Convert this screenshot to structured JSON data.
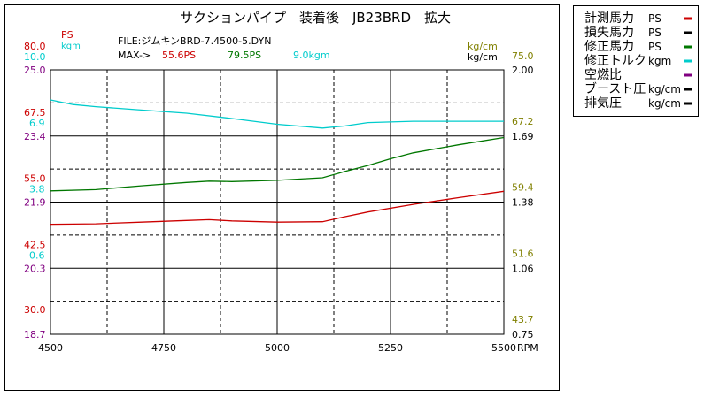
{
  "chart_data": {
    "type": "line",
    "title": "サクションパイプ　装着後　JB23BRD　拡大",
    "file_line": "FILE:ジムキンBRD-7.4500-5.DYN",
    "max_line": {
      "label": "MAX->",
      "values": [
        {
          "text": "55.6PS",
          "color": "#cc0000"
        },
        {
          "text": "79.5PS",
          "color": "#007700"
        },
        {
          "text": "9.0kgm",
          "color": "#00cccc"
        }
      ]
    },
    "xlabel": "RPM",
    "xlim": [
      4500,
      5500
    ],
    "x_ticks": [
      "4500",
      "4750",
      "5000",
      "5250",
      "5500"
    ],
    "grid": true,
    "legend_position": "right",
    "left_axes": [
      {
        "unit": "PS",
        "color": "#cc0000",
        "ticks": [
          "80.0",
          "67.5",
          "55.0",
          "42.5",
          "30.0"
        ]
      },
      {
        "unit": "kgm",
        "color": "#00cccc",
        "ticks": [
          "10.0",
          "6.9",
          "3.8",
          "0.6"
        ]
      },
      {
        "unit": "",
        "color": "#800080",
        "ticks": [
          "25.0",
          "23.4",
          "21.9",
          "20.3",
          "18.7"
        ]
      }
    ],
    "right_axes": [
      {
        "unit": "kg/cm",
        "color": "#808000",
        "ticks": [
          "75.0",
          "67.2",
          "59.4",
          "51.6",
          "43.7"
        ]
      },
      {
        "unit": "kg/cm",
        "color": "#000000",
        "ticks": [
          "2.00",
          "1.69",
          "1.38",
          "1.06",
          "0.75"
        ]
      }
    ],
    "ps_range": [
      17.5,
      80.0
    ],
    "kgm_range": [
      -2.5,
      10.0
    ],
    "series": [
      {
        "name": "計測馬力",
        "unit": "PS",
        "color": "#cc0000",
        "axis": "ps",
        "x": [
          4500,
          4600,
          4700,
          4800,
          4850,
          4900,
          5000,
          5100,
          5150,
          5200,
          5300,
          5400,
          5500
        ],
        "y": [
          43.5,
          43.6,
          44.0,
          44.4,
          44.6,
          44.3,
          44.0,
          44.1,
          45.3,
          46.4,
          48.2,
          49.8,
          51.3
        ]
      },
      {
        "name": "損失馬力",
        "unit": "PS",
        "color": "#000000",
        "axis": "ps",
        "x": [],
        "y": []
      },
      {
        "name": "修正馬力",
        "unit": "PS",
        "color": "#007700",
        "axis": "ps",
        "x": [
          4500,
          4600,
          4700,
          4800,
          4850,
          4900,
          5000,
          5100,
          5150,
          5200,
          5250,
          5300,
          5400,
          5500
        ],
        "y": [
          51.4,
          51.7,
          52.6,
          53.4,
          53.7,
          53.6,
          53.9,
          54.5,
          56.0,
          57.4,
          59.0,
          60.4,
          62.3,
          64.0
        ]
      },
      {
        "name": "修正トルク",
        "unit": "kgm",
        "color": "#00cccc",
        "axis": "kgm",
        "x": [
          4500,
          4550,
          4600,
          4700,
          4800,
          4900,
          5000,
          5100,
          5150,
          5200,
          5300,
          5400,
          5500
        ],
        "y": [
          8.58,
          8.36,
          8.26,
          8.1,
          7.95,
          7.7,
          7.43,
          7.25,
          7.35,
          7.51,
          7.57,
          7.57,
          7.57
        ]
      },
      {
        "name": "空燃比",
        "unit": "",
        "color": "#800080",
        "axis": "afr",
        "x": [],
        "y": []
      },
      {
        "name": "ブースト圧",
        "unit": "kg/cm",
        "color": "#000000",
        "axis": "boost",
        "x": [],
        "y": []
      },
      {
        "name": "排気圧",
        "unit": "kg/cm",
        "color": "#000000",
        "axis": "exhaust",
        "x": [],
        "y": []
      }
    ]
  }
}
